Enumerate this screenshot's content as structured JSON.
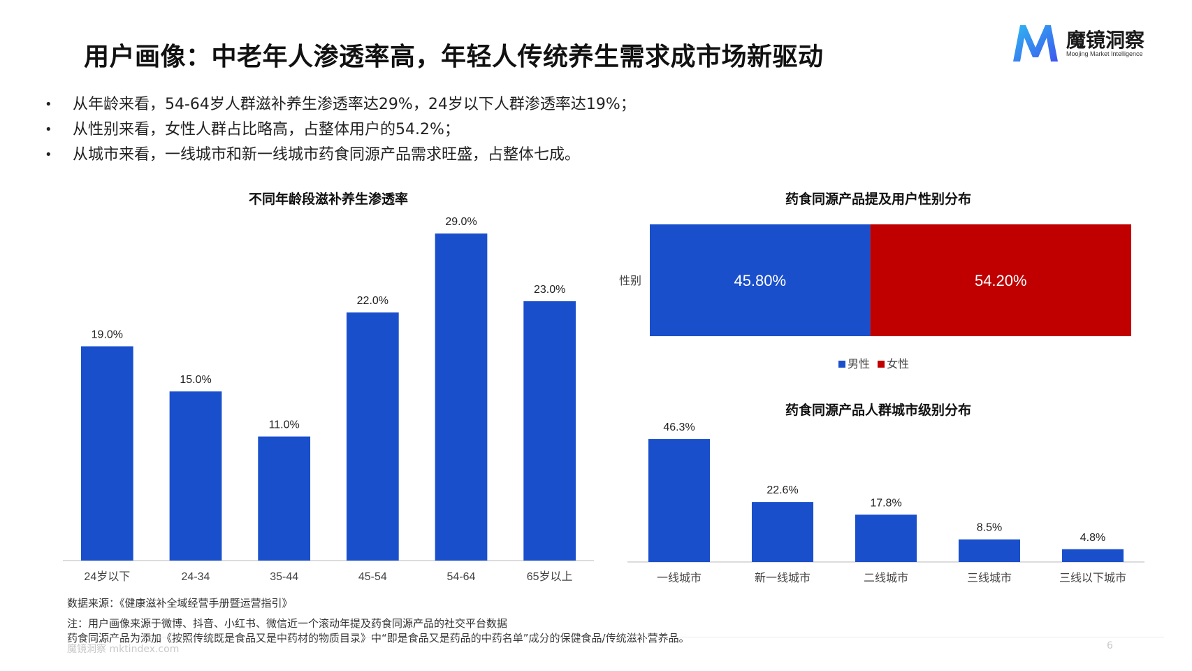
{
  "header": {
    "title": "用户画像：中老年人渗透率高，年轻人传统养生需求成市场新驱动",
    "logo_cn": "魔镜洞察",
    "logo_en": "Moojing Market Intelligence",
    "brand_color": "#3d6cf5"
  },
  "bullets": [
    "从年龄来看，54-64岁人群滋补养生渗透率达29%，24岁以下人群渗透率达19%；",
    "从性别来看，女性人群占比略高，占整体用户的54.2%；",
    "从城市来看，一线城市和新一线城市药食同源产品需求旺盛，占整体七成。"
  ],
  "chart_data": [
    {
      "type": "bar",
      "title": "不同年龄段滋补养生渗透率",
      "categories": [
        "24岁以下",
        "24-34",
        "35-44",
        "45-54",
        "54-64",
        "65岁以上"
      ],
      "values": [
        19.0,
        15.0,
        11.0,
        22.0,
        29.0,
        23.0
      ],
      "value_labels": [
        "19.0%",
        "15.0%",
        "11.0%",
        "22.0%",
        "29.0%",
        "23.0%"
      ],
      "ylim": [
        0,
        30
      ],
      "color": "#1a4fcc",
      "grid": false
    },
    {
      "type": "bar",
      "orientation": "horizontal-stacked",
      "title": "药食同源产品提及用户性别分布",
      "categories": [
        "性别"
      ],
      "series": [
        {
          "name": "男性",
          "values": [
            45.8
          ],
          "label": "45.80%",
          "color": "#1a4fcc"
        },
        {
          "name": "女性",
          "values": [
            54.2
          ],
          "label": "54.20%",
          "color": "#c00000"
        }
      ],
      "xlim": [
        0,
        100
      ],
      "legend": "bottom"
    },
    {
      "type": "bar",
      "title": "药食同源产品人群城市级别分布",
      "categories": [
        "一线城市",
        "新一线城市",
        "二线城市",
        "三线城市",
        "三线以下城市"
      ],
      "values": [
        46.3,
        22.6,
        17.8,
        8.5,
        4.8
      ],
      "value_labels": [
        "46.3%",
        "22.6%",
        "17.8%",
        "8.5%",
        "4.8%"
      ],
      "ylim": [
        0,
        50
      ],
      "color": "#1a4fcc",
      "grid": false
    }
  ],
  "notes": {
    "source": "数据来源：《健康滋补全域经营手册暨运营指引》",
    "note1": "注：用户画像来源于微博、抖音、小红书、微信近一个滚动年提及药食同源产品的社交平台数据",
    "note2": "药食同源产品为添加《按照传统既是食品又是中药材的物质目录》中“即是食品又是药品的中药名单”成分的保健食品/传统滋补营养品。"
  },
  "footer": {
    "brand": "魔镜洞察 mktindex.com",
    "page": "6"
  }
}
